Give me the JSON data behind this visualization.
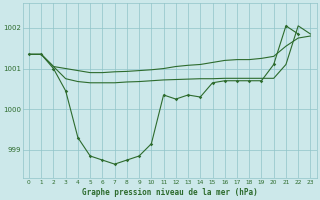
{
  "title": "Graphe pression niveau de la mer (hPa)",
  "background_color": "#cce8ea",
  "grid_color": "#90c4c8",
  "line_color": "#2d6b2d",
  "ylim": [
    998.3,
    1002.6
  ],
  "yticks": [
    999,
    1000,
    1001,
    1002
  ],
  "xlim": [
    -0.5,
    23.5
  ],
  "x_labels": [
    "0",
    "1",
    "2",
    "3",
    "4",
    "5",
    "6",
    "7",
    "8",
    "9",
    "10",
    "11",
    "12",
    "13",
    "14",
    "15",
    "16",
    "17",
    "18",
    "19",
    "20",
    "21",
    "22",
    "23"
  ],
  "series1_x": [
    0,
    1,
    2,
    3,
    4,
    5,
    6,
    7,
    8,
    9,
    10,
    11,
    12,
    13,
    14,
    15,
    16,
    17,
    18,
    19,
    20,
    21,
    22
  ],
  "series1_y": [
    1001.35,
    1001.35,
    1001.0,
    1000.45,
    999.3,
    998.85,
    998.75,
    998.65,
    998.75,
    998.85,
    999.15,
    1000.35,
    1000.25,
    1000.35,
    1000.3,
    1000.65,
    1000.7,
    1000.7,
    1000.7,
    1000.7,
    1001.1,
    1002.05,
    1001.85
  ],
  "series2_x": [
    0,
    1,
    2,
    3,
    4,
    5,
    6,
    7,
    8,
    9,
    10,
    11,
    12,
    13,
    14,
    15,
    16,
    17,
    18,
    19,
    20,
    21,
    22,
    23
  ],
  "series2_y": [
    1001.35,
    1001.35,
    1001.05,
    1001.0,
    1000.95,
    1000.9,
    1000.9,
    1000.92,
    1000.93,
    1000.95,
    1000.97,
    1001.0,
    1001.05,
    1001.08,
    1001.1,
    1001.15,
    1001.2,
    1001.22,
    1001.22,
    1001.25,
    1001.3,
    1001.55,
    1001.75,
    1001.8
  ],
  "series3_x": [
    0,
    1,
    2,
    3,
    4,
    5,
    6,
    7,
    8,
    9,
    10,
    11,
    12,
    13,
    14,
    15,
    16,
    17,
    18,
    19,
    20,
    21,
    22,
    23
  ],
  "series3_y": [
    1001.35,
    1001.35,
    1001.05,
    1000.75,
    1000.68,
    1000.65,
    1000.65,
    1000.65,
    1000.67,
    1000.68,
    1000.7,
    1000.72,
    1000.73,
    1000.74,
    1000.75,
    1000.75,
    1000.76,
    1000.76,
    1000.76,
    1000.76,
    1000.76,
    1001.1,
    1002.05,
    1001.85
  ]
}
